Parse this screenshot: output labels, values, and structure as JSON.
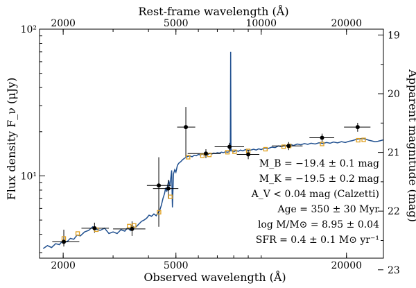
{
  "chart_data": {
    "type": "scatter",
    "title": "",
    "xlabel": "Observed wavelength (Å)",
    "ylabel": "Flux density F_ν (μJy)",
    "top_xlabel": "Rest-frame wavelength (Å)",
    "right_ylabel": "Apparent magnitude (mag)",
    "xscale": "log",
    "yscale": "log",
    "xlim": [
      1650,
      27000
    ],
    "ylim": [
      2.75,
      100
    ],
    "bottom_ticks": [
      {
        "value": 2000,
        "label": "2000"
      },
      {
        "value": 5000,
        "label": "5000"
      },
      {
        "value": 20000,
        "label": "20000"
      }
    ],
    "left_ticks": [
      {
        "value": 10,
        "label": "10¹"
      },
      {
        "value": 100,
        "label": "10²"
      }
    ],
    "top_ticks": [
      {
        "observed_equiv": 2000,
        "label": "2000"
      },
      {
        "observed_equiv": 5000,
        "label": "5000"
      },
      {
        "observed_equiv": 10000,
        "label": "10000"
      },
      {
        "observed_equiv": 20000,
        "label": "20000"
      }
    ],
    "right_ticks": [
      {
        "mag": 19,
        "label": "19"
      },
      {
        "mag": 20,
        "label": "20"
      },
      {
        "mag": 21,
        "label": "21"
      },
      {
        "mag": 22,
        "label": "22"
      },
      {
        "mag": 23,
        "label": "23"
      }
    ],
    "series": [
      {
        "name": "Observed photometry",
        "style": "black-points-with-errorbars",
        "color": "#000000",
        "points": [
          {
            "x": 2010,
            "y": 3.55,
            "xlo": 1830,
            "xhi": 2280,
            "ylo": 3.3,
            "yhi": 4.3
          },
          {
            "x": 2580,
            "y": 4.4,
            "xlo": 2320,
            "xhi": 2900,
            "ylo": 4.1,
            "yhi": 4.8
          },
          {
            "x": 3500,
            "y": 4.35,
            "xlo": 3000,
            "xhi": 3900,
            "ylo": 3.9,
            "yhi": 4.9
          },
          {
            "x": 4350,
            "y": 8.6,
            "xlo": 3950,
            "xhi": 4800,
            "ylo": 4.5,
            "yhi": 13.4
          },
          {
            "x": 4700,
            "y": 8.2,
            "xlo": 4150,
            "xhi": 5100,
            "ylo": 7.0,
            "yhi": 9.4
          },
          {
            "x": 5420,
            "y": 21.5,
            "xlo": 5050,
            "xhi": 5850,
            "ylo": 13.5,
            "yhi": 29.5
          },
          {
            "x": 6380,
            "y": 14.2,
            "xlo": 5500,
            "xhi": 7200,
            "ylo": 13.2,
            "yhi": 15.2
          },
          {
            "x": 7730,
            "y": 15.8,
            "xlo": 6850,
            "xhi": 8700,
            "ylo": 14.8,
            "yhi": 16.8
          },
          {
            "x": 9000,
            "y": 14.0,
            "xlo": 8200,
            "xhi": 9850,
            "ylo": 13.0,
            "yhi": 15.0
          },
          {
            "x": 12500,
            "y": 16.0,
            "xlo": 10900,
            "xhi": 14000,
            "ylo": 15.0,
            "yhi": 17.0
          },
          {
            "x": 16400,
            "y": 18.2,
            "xlo": 14800,
            "xhi": 18100,
            "ylo": 17.0,
            "yhi": 19.4
          },
          {
            "x": 21900,
            "y": 21.5,
            "xlo": 19600,
            "xhi": 24300,
            "ylo": 20.0,
            "yhi": 23.0
          }
        ]
      },
      {
        "name": "Model synthetic photometry",
        "style": "orange-open-squares",
        "color": "#e0a020",
        "points": [
          {
            "x": 2010,
            "y": 3.75
          },
          {
            "x": 2250,
            "y": 4.05
          },
          {
            "x": 2620,
            "y": 4.3
          },
          {
            "x": 3420,
            "y": 4.55
          },
          {
            "x": 3560,
            "y": 4.6
          },
          {
            "x": 4360,
            "y": 5.65
          },
          {
            "x": 4780,
            "y": 7.2
          },
          {
            "x": 5520,
            "y": 13.4
          },
          {
            "x": 6200,
            "y": 13.7
          },
          {
            "x": 6560,
            "y": 13.9
          },
          {
            "x": 7600,
            "y": 14.5
          },
          {
            "x": 8050,
            "y": 14.6
          },
          {
            "x": 9000,
            "y": 14.8
          },
          {
            "x": 10350,
            "y": 15.2
          },
          {
            "x": 12000,
            "y": 15.8
          },
          {
            "x": 12550,
            "y": 16.0
          },
          {
            "x": 16400,
            "y": 16.5
          },
          {
            "x": 22000,
            "y": 17.5
          },
          {
            "x": 23000,
            "y": 17.6
          }
        ]
      },
      {
        "name": "Best-fit model spectrum",
        "style": "blue-line",
        "color": "#1f4f8f",
        "points": [
          {
            "x": 1700,
            "y": 3.2
          },
          {
            "x": 1760,
            "y": 3.35
          },
          {
            "x": 1820,
            "y": 3.25
          },
          {
            "x": 1880,
            "y": 3.45
          },
          {
            "x": 1940,
            "y": 3.4
          },
          {
            "x": 2000,
            "y": 3.65
          },
          {
            "x": 2060,
            "y": 3.55
          },
          {
            "x": 2120,
            "y": 3.75
          },
          {
            "x": 2180,
            "y": 3.7
          },
          {
            "x": 2240,
            "y": 3.95
          },
          {
            "x": 2300,
            "y": 3.9
          },
          {
            "x": 2380,
            "y": 4.15
          },
          {
            "x": 2460,
            "y": 4.25
          },
          {
            "x": 2540,
            "y": 4.5
          },
          {
            "x": 2600,
            "y": 4.35
          },
          {
            "x": 2700,
            "y": 4.25
          },
          {
            "x": 2800,
            "y": 4.4
          },
          {
            "x": 2900,
            "y": 4.05
          },
          {
            "x": 3000,
            "y": 4.15
          },
          {
            "x": 3100,
            "y": 4.05
          },
          {
            "x": 3200,
            "y": 4.3
          },
          {
            "x": 3300,
            "y": 4.2
          },
          {
            "x": 3380,
            "y": 4.45
          },
          {
            "x": 3450,
            "y": 4.25
          },
          {
            "x": 3500,
            "y": 4.6
          },
          {
            "x": 3560,
            "y": 4.45
          },
          {
            "x": 3620,
            "y": 4.5
          },
          {
            "x": 3700,
            "y": 4.7
          },
          {
            "x": 3780,
            "y": 4.9
          },
          {
            "x": 3860,
            "y": 5.0
          },
          {
            "x": 3940,
            "y": 5.15
          },
          {
            "x": 4020,
            "y": 5.4
          },
          {
            "x": 4100,
            "y": 5.3
          },
          {
            "x": 4180,
            "y": 5.5
          },
          {
            "x": 4260,
            "y": 5.35
          },
          {
            "x": 4320,
            "y": 5.6
          },
          {
            "x": 4380,
            "y": 5.8
          },
          {
            "x": 4440,
            "y": 6.3
          },
          {
            "x": 4500,
            "y": 7.0
          },
          {
            "x": 4560,
            "y": 7.6
          },
          {
            "x": 4600,
            "y": 8.3
          },
          {
            "x": 4640,
            "y": 7.8
          },
          {
            "x": 4680,
            "y": 8.7
          },
          {
            "x": 4720,
            "y": 9.3
          },
          {
            "x": 4760,
            "y": 8.5
          },
          {
            "x": 4800,
            "y": 9.8
          },
          {
            "x": 4830,
            "y": 10.9
          },
          {
            "x": 4860,
            "y": 6.1
          },
          {
            "x": 4900,
            "y": 10.3
          },
          {
            "x": 4950,
            "y": 11.0
          },
          {
            "x": 5000,
            "y": 10.6
          },
          {
            "x": 5060,
            "y": 11.8
          },
          {
            "x": 5120,
            "y": 12.2
          },
          {
            "x": 5200,
            "y": 12.5
          },
          {
            "x": 5280,
            "y": 12.9
          },
          {
            "x": 5360,
            "y": 13.2
          },
          {
            "x": 5440,
            "y": 13.4
          },
          {
            "x": 5520,
            "y": 13.6
          },
          {
            "x": 5600,
            "y": 13.7
          },
          {
            "x": 5700,
            "y": 13.5
          },
          {
            "x": 5800,
            "y": 13.8
          },
          {
            "x": 5900,
            "y": 13.7
          },
          {
            "x": 6000,
            "y": 14.0
          },
          {
            "x": 6100,
            "y": 13.9
          },
          {
            "x": 6200,
            "y": 14.1
          },
          {
            "x": 6300,
            "y": 13.9
          },
          {
            "x": 6400,
            "y": 14.2
          },
          {
            "x": 6500,
            "y": 14.0
          },
          {
            "x": 6600,
            "y": 14.3
          },
          {
            "x": 6700,
            "y": 14.1
          },
          {
            "x": 6800,
            "y": 14.3
          },
          {
            "x": 6900,
            "y": 14.2
          },
          {
            "x": 7000,
            "y": 14.4
          },
          {
            "x": 7120,
            "y": 14.3
          },
          {
            "x": 7240,
            "y": 14.5
          },
          {
            "x": 7360,
            "y": 14.4
          },
          {
            "x": 7480,
            "y": 14.6
          },
          {
            "x": 7600,
            "y": 14.5
          },
          {
            "x": 7700,
            "y": 14.6
          },
          {
            "x": 7780,
            "y": 14.8
          },
          {
            "x": 7800,
            "y": 70.0
          },
          {
            "x": 7820,
            "y": 15.2
          },
          {
            "x": 7900,
            "y": 14.7
          },
          {
            "x": 8000,
            "y": 14.6
          },
          {
            "x": 8150,
            "y": 14.9
          },
          {
            "x": 8300,
            "y": 14.7
          },
          {
            "x": 8450,
            "y": 15.0
          },
          {
            "x": 8600,
            "y": 14.8
          },
          {
            "x": 8800,
            "y": 15.1
          },
          {
            "x": 9000,
            "y": 14.9
          },
          {
            "x": 9200,
            "y": 15.0
          },
          {
            "x": 9400,
            "y": 15.2
          },
          {
            "x": 9600,
            "y": 15.0
          },
          {
            "x": 9800,
            "y": 15.3
          },
          {
            "x": 10000,
            "y": 15.1
          },
          {
            "x": 10300,
            "y": 15.5
          },
          {
            "x": 10600,
            "y": 15.4
          },
          {
            "x": 10900,
            "y": 15.7
          },
          {
            "x": 11200,
            "y": 15.6
          },
          {
            "x": 11500,
            "y": 16.0
          },
          {
            "x": 11800,
            "y": 15.8
          },
          {
            "x": 12100,
            "y": 16.2
          },
          {
            "x": 12400,
            "y": 16.0
          },
          {
            "x": 12700,
            "y": 16.4
          },
          {
            "x": 13000,
            "y": 16.1
          },
          {
            "x": 13400,
            "y": 16.5
          },
          {
            "x": 13800,
            "y": 16.3
          },
          {
            "x": 14200,
            "y": 16.6
          },
          {
            "x": 14600,
            "y": 16.4
          },
          {
            "x": 15000,
            "y": 16.7
          },
          {
            "x": 15500,
            "y": 16.5
          },
          {
            "x": 16000,
            "y": 16.8
          },
          {
            "x": 16500,
            "y": 16.6
          },
          {
            "x": 17000,
            "y": 16.9
          },
          {
            "x": 17500,
            "y": 16.7
          },
          {
            "x": 18000,
            "y": 17.0
          },
          {
            "x": 18600,
            "y": 16.8
          },
          {
            "x": 19200,
            "y": 17.1
          },
          {
            "x": 19800,
            "y": 16.9
          },
          {
            "x": 20400,
            "y": 17.2
          },
          {
            "x": 21000,
            "y": 17.4
          },
          {
            "x": 21600,
            "y": 17.7
          },
          {
            "x": 22200,
            "y": 17.9
          },
          {
            "x": 22800,
            "y": 18.0
          },
          {
            "x": 23400,
            "y": 17.8
          },
          {
            "x": 24000,
            "y": 17.5
          },
          {
            "x": 24600,
            "y": 17.3
          },
          {
            "x": 25200,
            "y": 17.1
          },
          {
            "x": 25800,
            "y": 17.2
          },
          {
            "x": 26400,
            "y": 17.4
          },
          {
            "x": 27000,
            "y": 17.6
          }
        ]
      }
    ],
    "annotations": [
      "M_B = −19.4 ± 0.1 mag",
      "M_K = −19.5 ± 0.2 mag",
      "A_V < 0.04 mag (Calzetti)",
      "Age = 350 ± 30 Myr",
      "log M/M⊙ = 8.95 ± 0.04",
      "SFR = 0.4 ± 0.1 M⊙ yr⁻¹"
    ],
    "legend": "none"
  }
}
